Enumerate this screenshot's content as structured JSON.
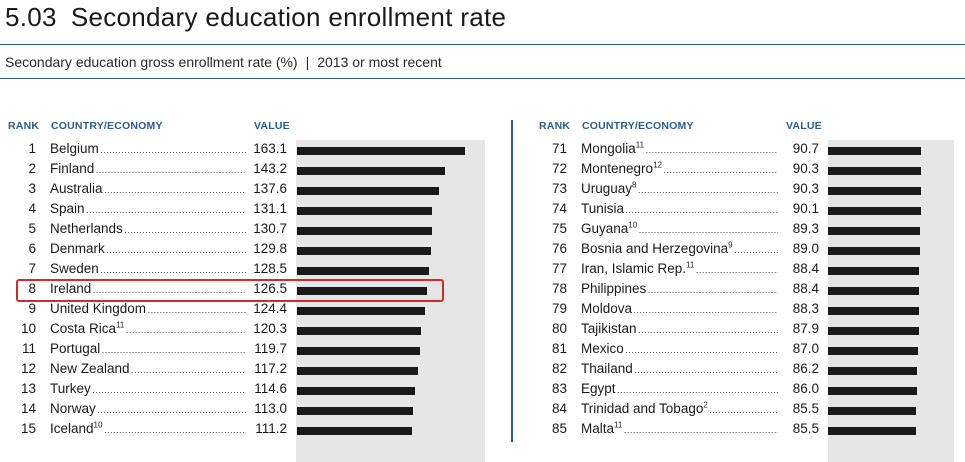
{
  "header": {
    "number": "5.03",
    "title": "Secondary education enrollment rate",
    "subtitle": "Secondary education gross enrollment rate (%)",
    "separator": "|",
    "period": "2013 or most recent"
  },
  "columns": {
    "rank": "RANK",
    "country": "COUNTRY/ECONOMY",
    "value": "VALUE"
  },
  "chart_data": {
    "type": "bar",
    "title": "Secondary education enrollment rate",
    "xlim": [
      0,
      170
    ],
    "highlighted_rank": 8,
    "left": [
      {
        "rank": "1",
        "country": "Belgium",
        "note": "",
        "value": 163.1,
        "label": "163.1"
      },
      {
        "rank": "2",
        "country": "Finland",
        "note": "",
        "value": 143.2,
        "label": "143.2"
      },
      {
        "rank": "3",
        "country": "Australia",
        "note": "",
        "value": 137.6,
        "label": "137.6"
      },
      {
        "rank": "4",
        "country": "Spain",
        "note": "",
        "value": 131.1,
        "label": "131.1"
      },
      {
        "rank": "5",
        "country": "Netherlands",
        "note": "",
        "value": 130.7,
        "label": "130.7"
      },
      {
        "rank": "6",
        "country": "Denmark",
        "note": "",
        "value": 129.8,
        "label": "129.8"
      },
      {
        "rank": "7",
        "country": "Sweden",
        "note": "",
        "value": 128.5,
        "label": "128.5"
      },
      {
        "rank": "8",
        "country": "Ireland",
        "note": "",
        "value": 126.5,
        "label": "126.5"
      },
      {
        "rank": "9",
        "country": "United Kingdom",
        "note": "",
        "value": 124.4,
        "label": "124.4"
      },
      {
        "rank": "10",
        "country": "Costa Rica",
        "note": "11",
        "value": 120.3,
        "label": "120.3"
      },
      {
        "rank": "11",
        "country": "Portugal",
        "note": "",
        "value": 119.7,
        "label": "119.7"
      },
      {
        "rank": "12",
        "country": "New Zealand",
        "note": "",
        "value": 117.2,
        "label": "117.2"
      },
      {
        "rank": "13",
        "country": "Turkey",
        "note": "",
        "value": 114.6,
        "label": "114.6"
      },
      {
        "rank": "14",
        "country": "Norway",
        "note": "",
        "value": 113.0,
        "label": "113.0"
      },
      {
        "rank": "15",
        "country": "Iceland",
        "note": "10",
        "value": 111.2,
        "label": "111.2"
      }
    ],
    "right": [
      {
        "rank": "71",
        "country": "Mongolia",
        "note": "11",
        "value": 90.7,
        "label": "90.7"
      },
      {
        "rank": "72",
        "country": "Montenegro",
        "note": "12",
        "value": 90.3,
        "label": "90.3"
      },
      {
        "rank": "73",
        "country": "Uruguay",
        "note": "8",
        "value": 90.3,
        "label": "90.3"
      },
      {
        "rank": "74",
        "country": "Tunisia",
        "note": "",
        "value": 90.1,
        "label": "90.1"
      },
      {
        "rank": "75",
        "country": "Guyana",
        "note": "10",
        "value": 89.3,
        "label": "89.3"
      },
      {
        "rank": "76",
        "country": "Bosnia and Herzegovina",
        "note": "9",
        "value": 89.0,
        "label": "89.0"
      },
      {
        "rank": "77",
        "country": "Iran, Islamic Rep.",
        "note": "11",
        "value": 88.4,
        "label": "88.4"
      },
      {
        "rank": "78",
        "country": "Philippines",
        "note": "",
        "value": 88.4,
        "label": "88.4"
      },
      {
        "rank": "79",
        "country": "Moldova",
        "note": "",
        "value": 88.3,
        "label": "88.3"
      },
      {
        "rank": "80",
        "country": "Tajikistan",
        "note": "",
        "value": 87.9,
        "label": "87.9"
      },
      {
        "rank": "81",
        "country": "Mexico",
        "note": "",
        "value": 87.0,
        "label": "87.0"
      },
      {
        "rank": "82",
        "country": "Thailand",
        "note": "",
        "value": 86.2,
        "label": "86.2"
      },
      {
        "rank": "83",
        "country": "Egypt",
        "note": "",
        "value": 86.0,
        "label": "86.0"
      },
      {
        "rank": "84",
        "country": "Trinidad and Tobago",
        "note": "2",
        "value": 85.5,
        "label": "85.5"
      },
      {
        "rank": "85",
        "country": "Malta",
        "note": "11",
        "value": 85.5,
        "label": "85.5"
      }
    ]
  },
  "colors": {
    "accent": "#2b5d8a",
    "bar": "#1a1a1a",
    "bar_background": "#e6e6e6",
    "highlight": "#d42a2a"
  }
}
